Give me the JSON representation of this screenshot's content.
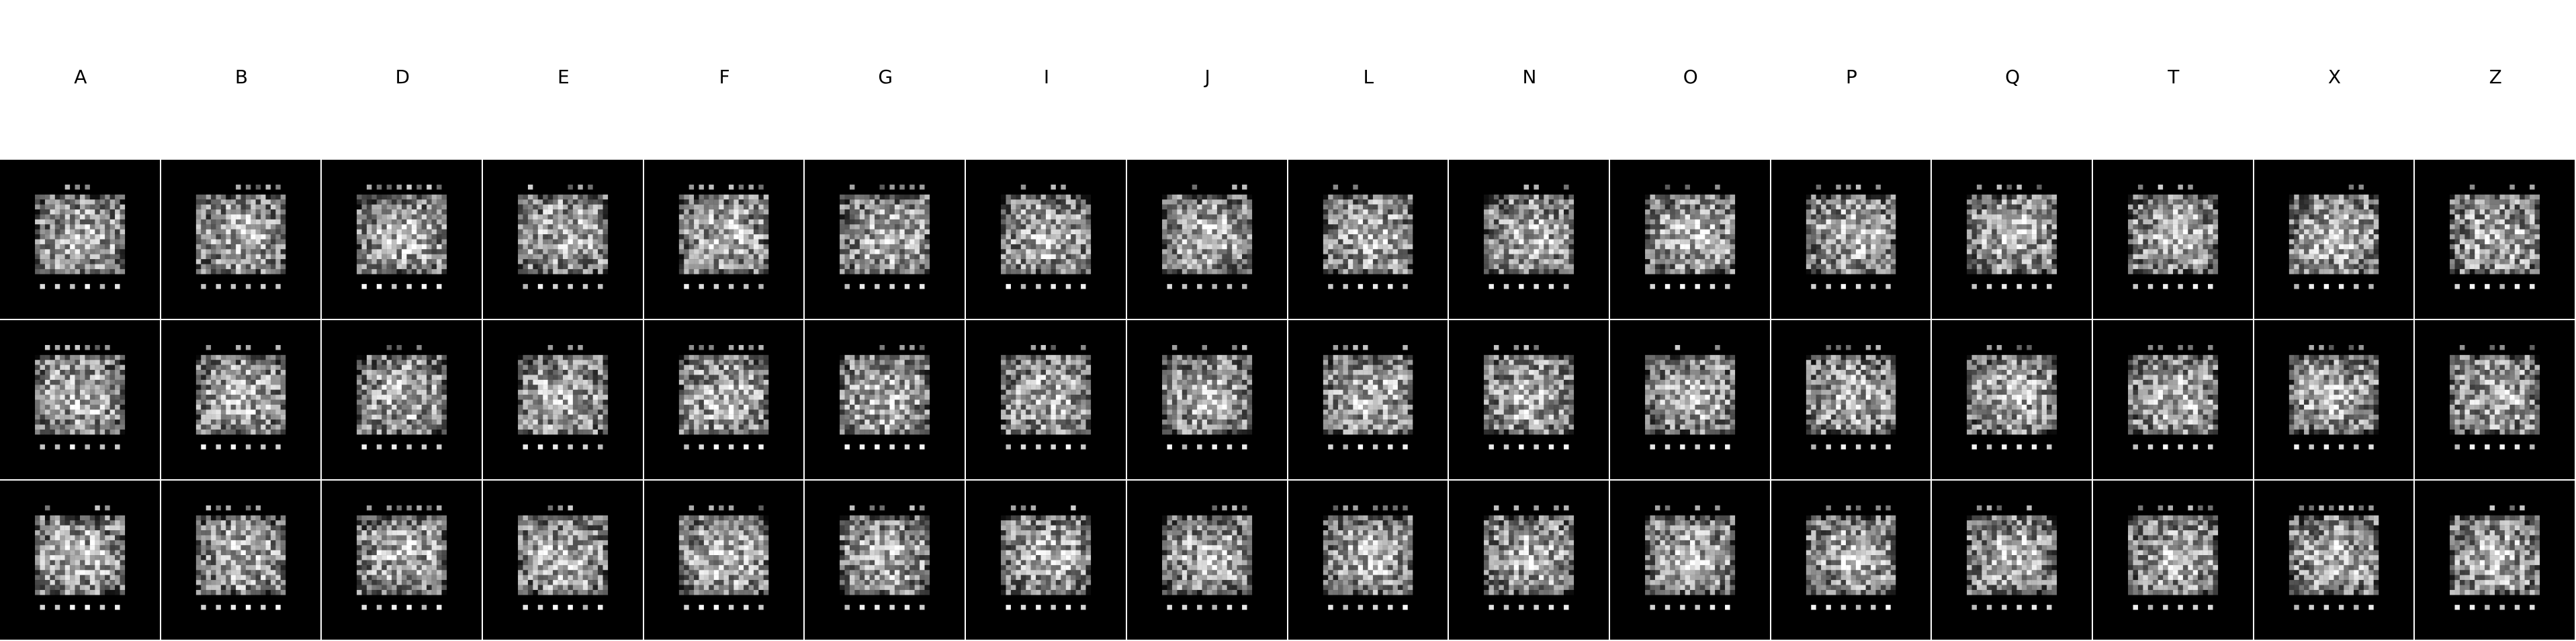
{
  "figure": {
    "columns": [
      "A",
      "B",
      "D",
      "E",
      "F",
      "G",
      "I",
      "J",
      "L",
      "N",
      "O",
      "P",
      "Q",
      "T",
      "X",
      "Z"
    ],
    "rows": 3,
    "tile_description": "noisy grayscale pixel-grid sample",
    "colors": {
      "background": "#ffffff",
      "tile_background": "#000000",
      "divider": "#ffffff"
    }
  }
}
